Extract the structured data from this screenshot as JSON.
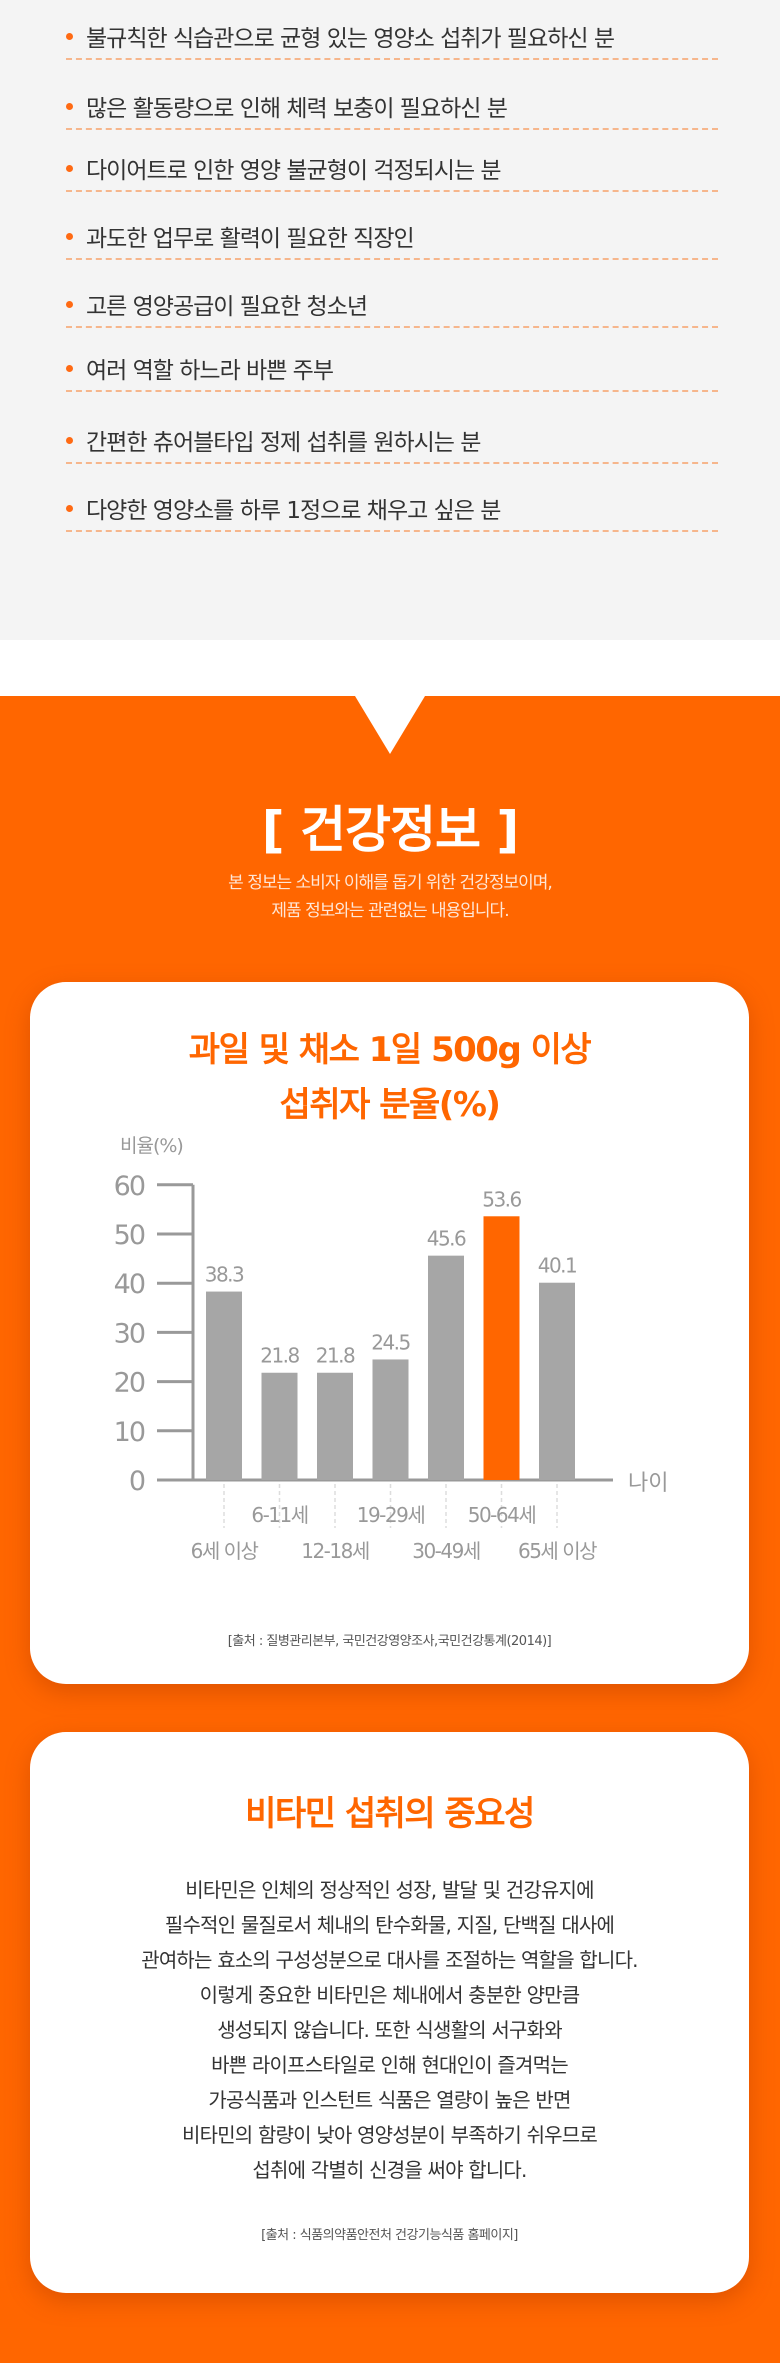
{
  "target_list": [
    "불규칙한 식습관으로 균형 있는 영양소 섭취가 필요하신 분",
    "많은 활동량으로 인해 체력 보충이 필요하신 분",
    "다이어트로 인한 영양 불균형이 걱정되시는 분",
    "과도한 업무로 활력이 필요한 직장인",
    "고른 영양공급이 필요한 청소년",
    "여러 역할 하느라 바쁜 주부",
    "간편한 츄어블타입 정제 섭취를 원하시는 분",
    "다양한 영양소를 하루 1정으로 채우고 싶은 분"
  ],
  "health_info": {
    "title": "[ 건강정보 ]",
    "subtitle_lines": [
      "본 정보는 소비자 이해를 돕기 위한 건강정보이며,",
      "제품 정보와는 관련없는 내용입니다."
    ]
  },
  "chart_data": {
    "type": "bar",
    "title": "과일 및 채소 1일 500g 이상 섭취자 분율(%)",
    "title_lines": [
      "과일 및 채소 1일 500g 이상",
      "섭취자 분율(%)"
    ],
    "ylabel": "비율(%)",
    "xlabel": "나이",
    "ylim": [
      0,
      60
    ],
    "yticks": [
      "0",
      "10",
      "20",
      "30",
      "40",
      "50",
      "60"
    ],
    "categories": [
      "6세 이상",
      "6-11세",
      "12-18세",
      "19-29세",
      "30-49세",
      "50-64세",
      "65세 이상"
    ],
    "values": [
      38.3,
      21.8,
      21.8,
      24.5,
      45.6,
      53.6,
      40.1
    ],
    "value_labels": [
      "38.3",
      "21.8",
      "21.8",
      "24.5",
      "45.6",
      "53.6",
      "40.1"
    ],
    "highlight_index": 5,
    "colors": {
      "bar": "#a6a6a6",
      "highlight": "#ff6600",
      "axis": "#999999"
    },
    "source": "[출처 : 질병관리본부, 국민건강영양조사,국민건강통계(2014)]"
  },
  "vitamin": {
    "title": "비타민 섭취의 중요성",
    "body_lines": [
      "비타민은 인체의 정상적인 성장, 발달 및 건강유지에",
      "필수적인 물질로서 체내의 탄수화물, 지질, 단백질 대사에",
      "관여하는 효소의 구성성분으로 대사를 조절하는 역할을 합니다.",
      "이렇게 중요한 비타민은 체내에서 충분한 양만큼",
      "생성되지 않습니다.  또한 식생활의 서구화와",
      "바쁜 라이프스타일로 인해 현대인이 즐겨먹는",
      "가공식품과 인스턴트 식품은 열량이 높은 반면",
      "비타민의 함량이 낮아 영양성분이 부족하기 쉬우므로",
      "섭취에 각별히 신경을 써야 합니다."
    ],
    "source": "[출처 : 식품의약품안전처 건강기능식품 홈페이지]"
  }
}
